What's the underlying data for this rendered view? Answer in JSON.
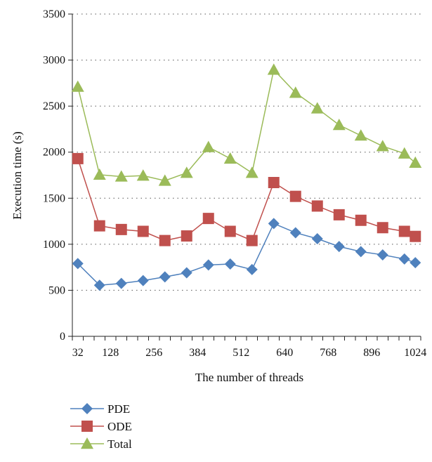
{
  "chart_data": {
    "type": "line",
    "title": "",
    "xlabel": "The number of threads",
    "ylabel": "Execution time (s)",
    "ylim": [
      0,
      3500
    ],
    "yticks": [
      0,
      500,
      1000,
      1500,
      2000,
      2500,
      3000,
      3500
    ],
    "x": [
      32,
      64,
      96,
      128,
      160,
      192,
      224,
      256,
      288,
      320,
      352,
      384,
      416,
      448,
      480,
      512,
      544,
      576,
      608,
      640,
      672,
      704,
      736,
      768,
      800,
      832,
      864,
      896,
      928,
      960,
      992,
      1024
    ],
    "xtick_labels": [
      "32",
      "128",
      "256",
      "384",
      "512",
      "640",
      "768",
      "896",
      "1024"
    ],
    "grid": "horizontal dotted",
    "legend_position": "bottom-left",
    "series": [
      {
        "name": "PDE",
        "color": "#4f81bd",
        "marker": "diamond",
        "points": [
          [
            32,
            790
          ],
          [
            96,
            555
          ],
          [
            160,
            575
          ],
          [
            224,
            605
          ],
          [
            288,
            645
          ],
          [
            352,
            690
          ],
          [
            416,
            775
          ],
          [
            480,
            785
          ],
          [
            544,
            725
          ],
          [
            608,
            1225
          ],
          [
            672,
            1125
          ],
          [
            736,
            1060
          ],
          [
            800,
            975
          ],
          [
            864,
            920
          ],
          [
            928,
            885
          ],
          [
            992,
            840
          ],
          [
            1024,
            800
          ]
        ]
      },
      {
        "name": "ODE",
        "color": "#c0504d",
        "marker": "square",
        "points": [
          [
            32,
            1930
          ],
          [
            96,
            1200
          ],
          [
            160,
            1160
          ],
          [
            224,
            1140
          ],
          [
            288,
            1040
          ],
          [
            352,
            1090
          ],
          [
            416,
            1280
          ],
          [
            480,
            1140
          ],
          [
            544,
            1040
          ],
          [
            608,
            1670
          ],
          [
            672,
            1520
          ],
          [
            736,
            1415
          ],
          [
            800,
            1320
          ],
          [
            864,
            1260
          ],
          [
            928,
            1180
          ],
          [
            992,
            1140
          ],
          [
            1024,
            1085
          ]
        ]
      },
      {
        "name": "Total",
        "color": "#9bbb59",
        "marker": "triangle",
        "points": [
          [
            32,
            2710
          ],
          [
            96,
            1755
          ],
          [
            160,
            1735
          ],
          [
            224,
            1745
          ],
          [
            288,
            1690
          ],
          [
            352,
            1775
          ],
          [
            416,
            2055
          ],
          [
            480,
            1930
          ],
          [
            544,
            1775
          ],
          [
            608,
            2895
          ],
          [
            672,
            2645
          ],
          [
            736,
            2475
          ],
          [
            800,
            2295
          ],
          [
            864,
            2180
          ],
          [
            928,
            2065
          ],
          [
            992,
            1985
          ],
          [
            1024,
            1885
          ]
        ]
      }
    ]
  }
}
